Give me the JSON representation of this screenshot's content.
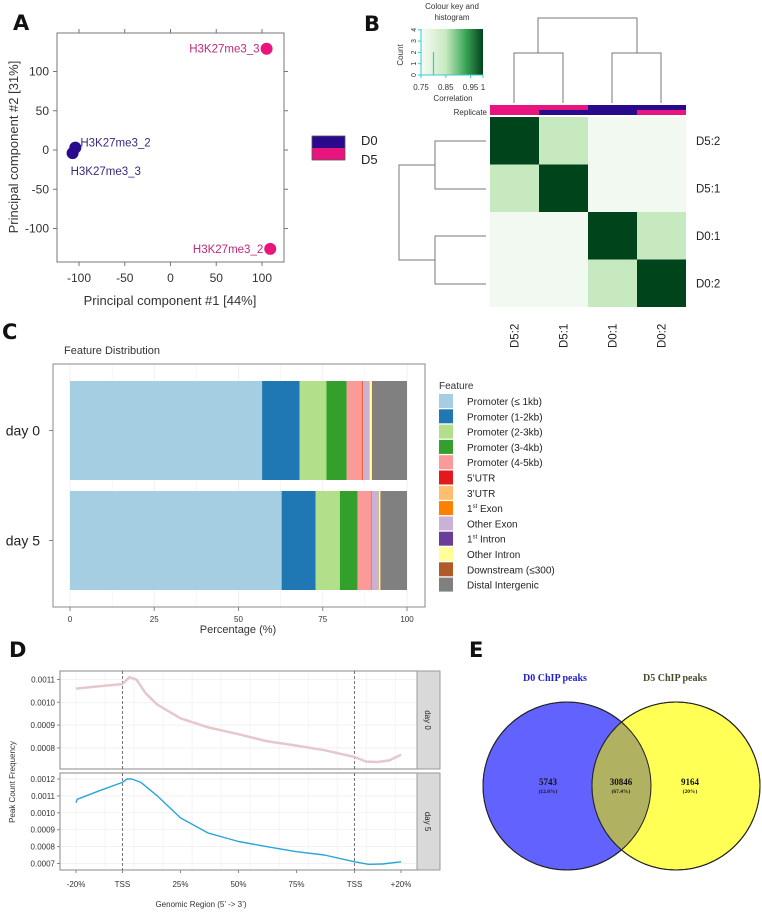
{
  "panels": {
    "a": {
      "letter": "A"
    },
    "b": {
      "letter": "B"
    },
    "c": {
      "letter": "C"
    },
    "d": {
      "letter": "D"
    },
    "e": {
      "letter": "E"
    }
  },
  "colors": {
    "d0": "#2a0a8c",
    "d5": "#e8157f",
    "heat_high": "#00441b",
    "heat_mid": "#c7e9c0",
    "heat_low": "#f2f9f0",
    "venn_left": "#6262ff",
    "venn_right": "#ffff55",
    "venn_overlap": "#b1b162",
    "day0_line": "#e4c8cc",
    "day5_line": "#2aa5d8"
  },
  "chart_data": [
    {
      "id": "pca",
      "type": "scatter",
      "xlabel": "Principal component #1 [44%]",
      "ylabel": "Principal component #2 [31%]",
      "xlim": [
        -120,
        125
      ],
      "ylim": [
        -145,
        145
      ],
      "xticks": [
        -100,
        -50,
        0,
        50,
        100
      ],
      "yticks": [
        100,
        50,
        0,
        -50,
        -100
      ],
      "legend": {
        "position": "right",
        "entries": [
          {
            "label": "D0",
            "color": "#2a0a8c"
          },
          {
            "label": "D5",
            "color": "#e8157f"
          }
        ]
      },
      "points": [
        {
          "label": "H3K27me3_2",
          "group": "D0",
          "x": -104,
          "y": 3,
          "label_side": "right-above"
        },
        {
          "label": "H3K27me3_3",
          "group": "D0",
          "x": -107,
          "y": -4,
          "label_side": "right-below"
        },
        {
          "label": "H3K27me3_3",
          "group": "D5",
          "x": 105,
          "y": 129,
          "label_side": "left"
        },
        {
          "label": "H3K27me3_2",
          "group": "D5",
          "x": 109,
          "y": -126,
          "label_side": "left"
        }
      ]
    },
    {
      "id": "correlation-heatmap",
      "type": "heatmap",
      "rows": [
        "D5:2",
        "D5:1",
        "D0:1",
        "D0:2"
      ],
      "cols": [
        "D5:2",
        "D5:1",
        "D0:1",
        "D0:2"
      ],
      "values": [
        [
          1.0,
          0.84,
          0.76,
          0.76
        ],
        [
          0.84,
          1.0,
          0.76,
          0.76
        ],
        [
          0.76,
          0.76,
          1.0,
          0.84
        ],
        [
          0.76,
          0.76,
          0.84,
          1.0
        ]
      ],
      "replicate_label": "Replicate",
      "replicate_colors": [
        [
          "#e8157f",
          "#e8157f"
        ],
        [
          "#e8157f",
          "#2a0a8c"
        ],
        [
          "#2a0a8c",
          "#2a0a8c"
        ],
        [
          "#2a0a8c",
          "#e8157f"
        ]
      ],
      "color_key": {
        "title_line1": "Colour key and",
        "title_line2": "histogram",
        "xlabel": "Correlation",
        "ylabel": "Count",
        "xticks": [
          "0.75",
          "0.85",
          "0.95",
          "1"
        ],
        "yticks": [
          "0",
          "1",
          "2",
          "3",
          "4"
        ],
        "xrange": [
          0.75,
          1.0
        ],
        "histogram": [
          {
            "x": 0.77,
            "count": 2
          }
        ]
      }
    },
    {
      "id": "feature-distribution",
      "type": "bar",
      "title": "Feature Distribution",
      "xlabel": "Percentage (%)",
      "xlim": [
        0,
        100
      ],
      "xticks": [
        "0",
        "25",
        "50",
        "75",
        "100"
      ],
      "categories": [
        "day 0",
        "day 5"
      ],
      "legend_title": "Feature",
      "series": [
        {
          "name": "Promoter (≤ 1kb)",
          "color": "#a6cee3",
          "values": [
            57.0,
            62.8
          ]
        },
        {
          "name": "Promoter (1-2kb)",
          "color": "#1f78b4",
          "values": [
            11.1,
            10.1
          ]
        },
        {
          "name": "Promoter (2-3kb)",
          "color": "#b2df8a",
          "values": [
            8.0,
            7.2
          ]
        },
        {
          "name": "Promoter (3-4kb)",
          "color": "#33a02c",
          "values": [
            6.0,
            5.2
          ]
        },
        {
          "name": "Promoter (4-5kb)",
          "color": "#fb9a99",
          "values": [
            4.5,
            4.0
          ]
        },
        {
          "name": "5’UTR",
          "color": "#e31a1c",
          "values": [
            0.2,
            0.1
          ]
        },
        {
          "name": "3’UTR",
          "color": "#fdbf6f",
          "values": [
            0.1,
            0.1
          ]
        },
        {
          "name": "1st Exon",
          "color": "#ff7f00",
          "values": [
            0.1,
            0.1
          ]
        },
        {
          "name": "Other Exon",
          "color": "#cab2d6",
          "values": [
            1.7,
            1.8
          ]
        },
        {
          "name": "1st Intron",
          "color": "#6a3d9a",
          "values": [
            0.1,
            0.1
          ]
        },
        {
          "name": "Other Intron",
          "color": "#ffff99",
          "values": [
            0.8,
            0.6
          ]
        },
        {
          "name": "Downstream (≤300)",
          "color": "#b15928",
          "values": [
            0.1,
            0.1
          ]
        },
        {
          "name": "Distal Intergenic",
          "color": "#808080",
          "values": [
            10.3,
            7.8
          ]
        }
      ]
    },
    {
      "id": "peak-profile",
      "type": "line",
      "xlabel": "Genomic Region (5’ -> 3’)",
      "ylabel": "Peak Count Frequency",
      "xticks": [
        "-20%",
        "TSS",
        "25%",
        "50%",
        "75%",
        "TSS",
        "+20%"
      ],
      "facets": [
        {
          "label": "day 0",
          "color": "#e4c8cc",
          "yticks": [
            "0.0011",
            "0.0010",
            "0.0009",
            "0.0008"
          ],
          "ylim": [
            0.00072,
            0.00113
          ],
          "x": [
            -20,
            -10,
            0,
            3,
            6,
            10,
            15,
            25,
            37,
            50,
            62,
            75,
            87,
            100,
            105,
            110,
            115,
            120
          ],
          "y": [
            0.00106,
            0.00107,
            0.00108,
            0.00111,
            0.0011,
            0.00104,
            0.00099,
            0.00093,
            0.00089,
            0.00086,
            0.00083,
            0.00081,
            0.00079,
            0.00076,
            0.00074,
            0.000738,
            0.000745,
            0.00077
          ]
        },
        {
          "label": "day 5",
          "color": "#2aa5d8",
          "yticks": [
            "0.0012",
            "0.0011",
            "0.0010",
            "0.0009",
            "0.0008",
            "0.0007"
          ],
          "ylim": [
            0.00067,
            0.00122
          ],
          "x": [
            -20,
            -19.5,
            -10,
            0,
            2,
            4,
            8,
            15,
            25,
            37,
            50,
            62,
            75,
            87,
            100,
            106,
            112,
            120
          ],
          "y": [
            0.00106,
            0.00108,
            0.00113,
            0.00118,
            0.0012,
            0.0012,
            0.00118,
            0.0011,
            0.00097,
            0.00088,
            0.00083,
            0.0008,
            0.00077,
            0.00075,
            0.00071,
            0.000695,
            0.000697,
            0.00071
          ]
        }
      ]
    },
    {
      "id": "venn",
      "type": "venn",
      "sets": [
        {
          "name": "D0 ChIP peaks",
          "color": "#6262ff",
          "label_color": "#2222cc"
        },
        {
          "name": "D5 ChIP peaks",
          "color": "#ffff55",
          "label_color": "#4a4a2a"
        }
      ],
      "regions": [
        {
          "id": "d0_only",
          "count": "5743",
          "percent": "(12.6%)"
        },
        {
          "id": "overlap",
          "count": "30846",
          "percent": "(67.4%)"
        },
        {
          "id": "d5_only",
          "count": "9164",
          "percent": "(20%)"
        }
      ]
    }
  ]
}
